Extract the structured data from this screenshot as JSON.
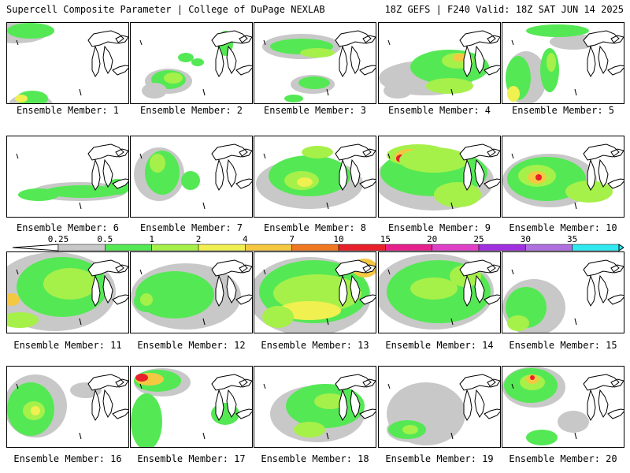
{
  "header": {
    "left": "Supercell Composite Parameter | College of DuPage NEXLAB",
    "right": "18Z GEFS | F240 Valid: 18Z SAT JUN 14 2025"
  },
  "panels": [
    {
      "label": "Ensemble Member: 1"
    },
    {
      "label": "Ensemble Member: 2"
    },
    {
      "label": "Ensemble Member: 3"
    },
    {
      "label": "Ensemble Member: 4"
    },
    {
      "label": "Ensemble Member: 5"
    },
    {
      "label": "Ensemble Member: 6"
    },
    {
      "label": "Ensemble Member: 7"
    },
    {
      "label": "Ensemble Member: 8"
    },
    {
      "label": "Ensemble Member: 9"
    },
    {
      "label": "Ensemble Member: 10"
    },
    {
      "label": "Ensemble Member: 11"
    },
    {
      "label": "Ensemble Member: 12"
    },
    {
      "label": "Ensemble Member: 13"
    },
    {
      "label": "Ensemble Member: 14"
    },
    {
      "label": "Ensemble Member: 15"
    },
    {
      "label": "Ensemble Member: 16"
    },
    {
      "label": "Ensemble Member: 17"
    },
    {
      "label": "Ensemble Member: 18"
    },
    {
      "label": "Ensemble Member: 19"
    },
    {
      "label": "Ensemble Member: 20"
    }
  ],
  "colorbar": {
    "levels": [
      "0.25",
      "0.5",
      "1",
      "2",
      "4",
      "7",
      "10",
      "15",
      "20",
      "25",
      "30",
      "35"
    ],
    "colors": [
      "#c8c8c8",
      "#55e855",
      "#a6f04a",
      "#f0f050",
      "#f5c842",
      "#f07820",
      "#e8202a",
      "#e8208c",
      "#e040c8",
      "#a030e0",
      "#b070e0",
      "#30e8f0"
    ]
  }
}
